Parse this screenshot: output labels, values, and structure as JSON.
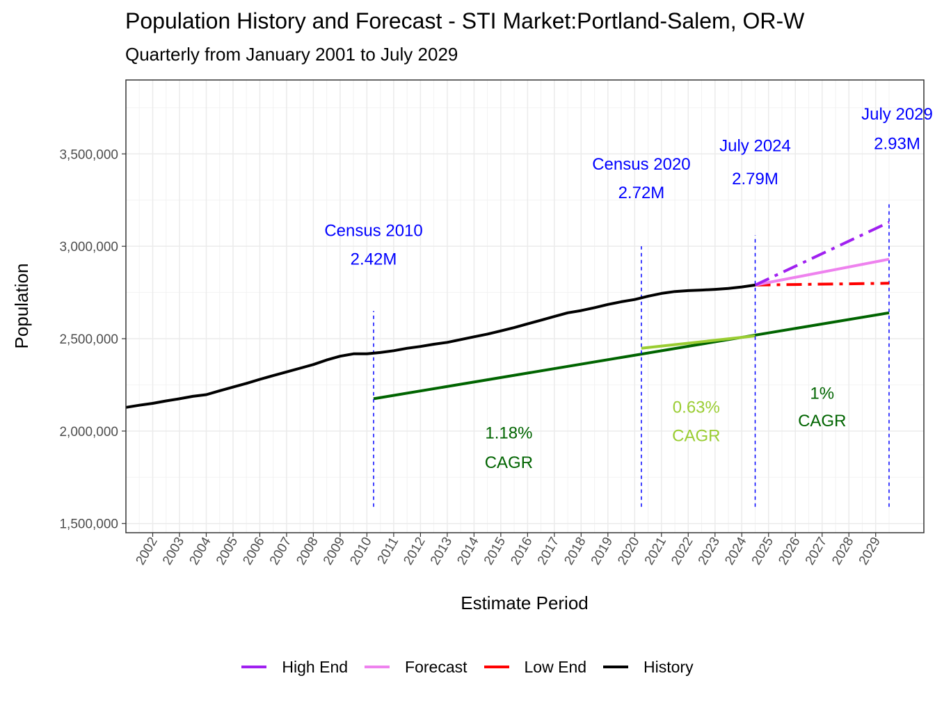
{
  "chart_data": {
    "type": "line",
    "title": "Population History and Forecast - STI Market:Portland-Salem, OR-W",
    "subtitle": "Quarterly from January 2001 to July 2029",
    "xlabel": "Estimate Period",
    "ylabel": "Population",
    "xlim": [
      2001.0,
      2030.8
    ],
    "ylim": [
      1450000,
      3900000
    ],
    "x_ticks": [
      "2002",
      "2003",
      "2004",
      "2005",
      "2006",
      "2007",
      "2008",
      "2009",
      "2010",
      "2011",
      "2012",
      "2013",
      "2014",
      "2015",
      "2016",
      "2017",
      "2018",
      "2019",
      "2020",
      "2021",
      "2022",
      "2023",
      "2024",
      "2025",
      "2026",
      "2027",
      "2028",
      "2029"
    ],
    "y_ticks": [
      1500000,
      2000000,
      2500000,
      3000000,
      3500000
    ],
    "y_tick_labels": [
      "1,500,000",
      "2,000,000",
      "2,500,000",
      "3,000,000",
      "3,500,000"
    ],
    "legend_position": "bottom",
    "series": [
      {
        "name": "High End",
        "color": "#a020f0",
        "style": "dashdot",
        "x": [
          2024.5,
          2029.5
        ],
        "y": [
          2790000,
          3130000
        ]
      },
      {
        "name": "Forecast",
        "color": "#ee82ee",
        "style": "solid",
        "x": [
          2024.5,
          2029.5
        ],
        "y": [
          2790000,
          2930000
        ]
      },
      {
        "name": "Low End",
        "color": "#ff0000",
        "style": "dashdot",
        "x": [
          2024.5,
          2029.5
        ],
        "y": [
          2790000,
          2800000
        ]
      },
      {
        "name": "History",
        "color": "#000000",
        "style": "solid",
        "x": [
          2001.0,
          2001.5,
          2002.0,
          2002.5,
          2003.0,
          2003.5,
          2004.0,
          2004.5,
          2005.0,
          2005.5,
          2006.0,
          2006.5,
          2007.0,
          2007.5,
          2008.0,
          2008.5,
          2009.0,
          2009.5,
          2010.0,
          2010.5,
          2011.0,
          2011.5,
          2012.0,
          2012.5,
          2013.0,
          2013.5,
          2014.0,
          2014.5,
          2015.0,
          2015.5,
          2016.0,
          2016.5,
          2017.0,
          2017.5,
          2018.0,
          2018.5,
          2019.0,
          2019.5,
          2020.0,
          2020.5,
          2021.0,
          2021.5,
          2022.0,
          2022.5,
          2023.0,
          2023.5,
          2024.0,
          2024.5
        ],
        "y": [
          2128000,
          2140000,
          2150000,
          2163000,
          2175000,
          2188000,
          2197000,
          2218000,
          2238000,
          2258000,
          2280000,
          2300000,
          2320000,
          2340000,
          2360000,
          2385000,
          2405000,
          2418000,
          2418000,
          2425000,
          2435000,
          2448000,
          2458000,
          2470000,
          2480000,
          2495000,
          2510000,
          2525000,
          2542000,
          2560000,
          2580000,
          2600000,
          2620000,
          2640000,
          2652000,
          2668000,
          2685000,
          2700000,
          2712000,
          2730000,
          2745000,
          2755000,
          2760000,
          2763000,
          2767000,
          2772000,
          2780000,
          2790000
        ]
      }
    ],
    "cagr_lines": [
      {
        "x": [
          2010.25,
          2029.5
        ],
        "y": [
          2175000,
          2640000
        ],
        "color": "#006400"
      },
      {
        "x": [
          2020.25,
          2024.5
        ],
        "y": [
          2448000,
          2515000
        ],
        "color": "#9acd32"
      }
    ],
    "vlines": [
      {
        "x": 2010.25,
        "y": [
          1590000,
          2650000
        ]
      },
      {
        "x": 2020.25,
        "y": [
          1590000,
          3000000
        ]
      },
      {
        "x": 2024.5,
        "y": [
          1590000,
          3060000
        ]
      },
      {
        "x": 2029.5,
        "y": [
          1590000,
          3230000
        ]
      }
    ],
    "annotations": [
      {
        "id": "census2010",
        "lines": [
          "Census 2010",
          "2.42M"
        ],
        "x": 2010.25,
        "y": [
          3085000,
          2930000
        ],
        "color": "#0000ff"
      },
      {
        "id": "census2020",
        "lines": [
          "Census 2020",
          "2.72M"
        ],
        "x": 2020.25,
        "y": [
          3445000,
          3290000
        ],
        "color": "#0000ff"
      },
      {
        "id": "july2024",
        "lines": [
          "July 2024",
          "2.79M"
        ],
        "x": 2024.5,
        "y": [
          3545000,
          3365000
        ],
        "color": "#0000ff"
      },
      {
        "id": "july2029",
        "lines": [
          "July 2029",
          "2.93M"
        ],
        "x": 2029.8,
        "y": [
          3715000,
          3555000
        ],
        "color": "#0000ff"
      },
      {
        "id": "cagr1",
        "lines": [
          "1.18%",
          " CAGR"
        ],
        "x": 2015.3,
        "y": [
          1990000,
          1830000
        ],
        "color": "#006400"
      },
      {
        "id": "cagr2",
        "lines": [
          "0.63%",
          " CAGR"
        ],
        "x": 2022.3,
        "y": [
          2130000,
          1975000
        ],
        "color": "#9acd32"
      },
      {
        "id": "cagr3",
        "lines": [
          "1%",
          " CAGR"
        ],
        "x": 2027.0,
        "y": [
          2205000,
          2055000
        ],
        "color": "#006400"
      }
    ]
  }
}
